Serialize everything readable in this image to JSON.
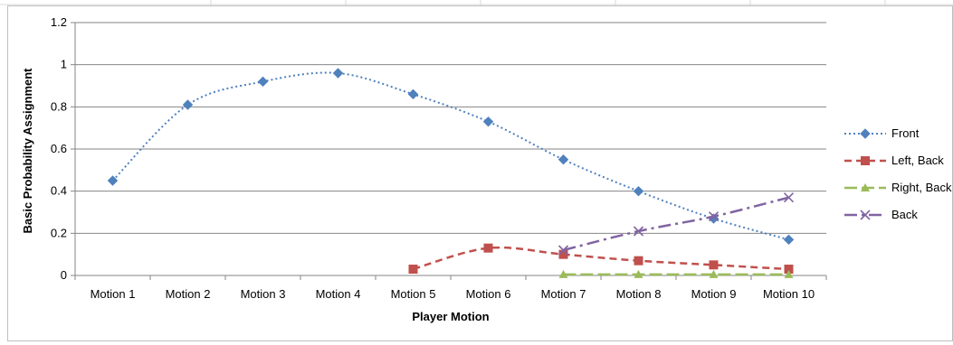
{
  "chart_data": {
    "type": "line",
    "title": "",
    "xlabel": "Player Motion",
    "ylabel": "Basic Probability  Assignment",
    "ylim": [
      0,
      1.2
    ],
    "yticks": [
      "0",
      "0.2",
      "0.4",
      "0.6",
      "0.8",
      "1",
      "1.2"
    ],
    "categories": [
      "Motion 1",
      "Motion 2",
      "Motion 3",
      "Motion 4",
      "Motion 5",
      "Motion 6",
      "Motion 7",
      "Motion 8",
      "Motion 9",
      "Motion 10"
    ],
    "grid": true,
    "legend_position": "right",
    "series": [
      {
        "name": "Front",
        "color": "#4F81BD",
        "line_style": "dotted",
        "marker": "diamond",
        "smooth": true,
        "values": [
          0.45,
          0.81,
          0.92,
          0.96,
          0.86,
          0.73,
          0.55,
          0.4,
          0.27,
          0.17
        ]
      },
      {
        "name": "Left, Back",
        "color": "#C0504D",
        "line_style": "dashed",
        "marker": "square",
        "smooth": true,
        "values": [
          null,
          null,
          null,
          null,
          0.03,
          0.13,
          0.1,
          0.07,
          0.05,
          0.03
        ]
      },
      {
        "name": "Right, Back",
        "color": "#9BBB59",
        "line_style": "longdash",
        "marker": "triangle",
        "smooth": true,
        "values": [
          null,
          null,
          null,
          null,
          null,
          null,
          0.005,
          0.005,
          0.005,
          0.005
        ]
      },
      {
        "name": "Back",
        "color": "#8064A2",
        "line_style": "dashdot",
        "marker": "x",
        "smooth": true,
        "values": [
          null,
          null,
          null,
          null,
          null,
          null,
          0.12,
          0.21,
          0.28,
          0.37
        ]
      }
    ]
  }
}
